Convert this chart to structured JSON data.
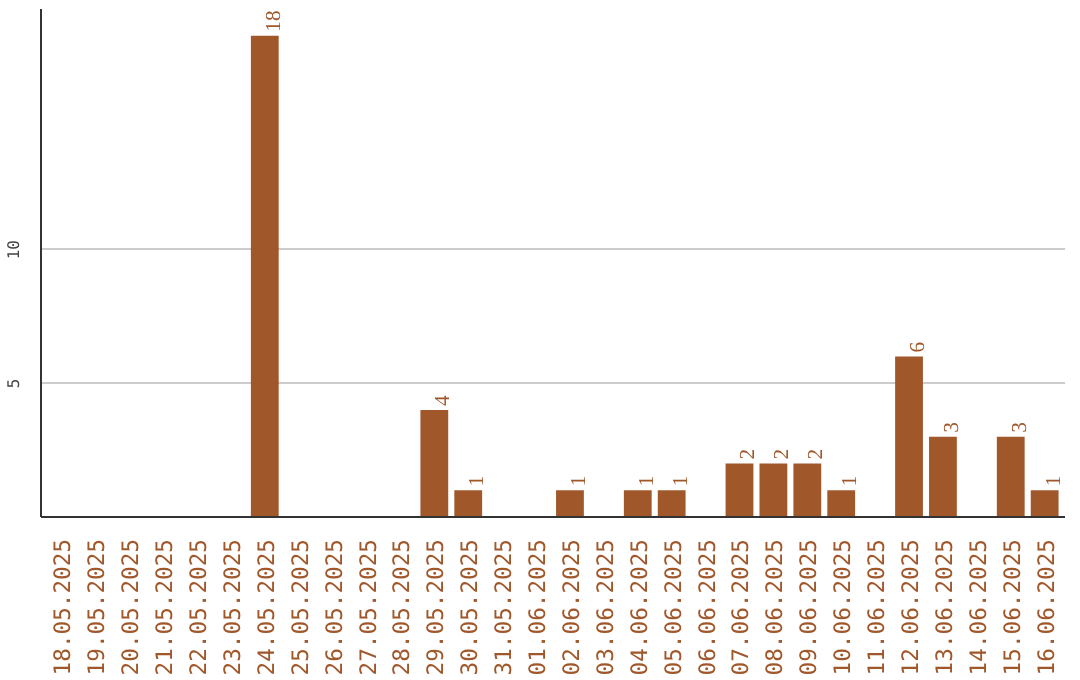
{
  "chart_data": {
    "type": "bar",
    "categories": [
      "18.05.2025",
      "19.05.2025",
      "20.05.2025",
      "21.05.2025",
      "22.05.2025",
      "23.05.2025",
      "24.05.2025",
      "25.05.2025",
      "26.05.2025",
      "27.05.2025",
      "28.05.2025",
      "29.05.2025",
      "30.05.2025",
      "31.05.2025",
      "01.06.2025",
      "02.06.2025",
      "03.06.2025",
      "04.06.2025",
      "05.06.2025",
      "06.06.2025",
      "07.06.2025",
      "08.06.2025",
      "09.06.2025",
      "10.06.2025",
      "11.06.2025",
      "12.06.2025",
      "13.06.2025",
      "14.06.2025",
      "15.06.2025",
      "16.06.2025"
    ],
    "values": [
      0,
      0,
      0,
      0,
      0,
      0,
      18,
      0,
      0,
      0,
      0,
      4,
      1,
      0,
      0,
      1,
      0,
      1,
      1,
      0,
      2,
      2,
      2,
      1,
      0,
      6,
      3,
      0,
      3,
      1
    ],
    "value_labels": [
      null,
      null,
      null,
      null,
      null,
      null,
      "18",
      null,
      null,
      null,
      null,
      "4",
      "1",
      null,
      null,
      "1",
      null,
      "1",
      "1",
      null,
      "2",
      "2",
      "2",
      "1",
      null,
      "6",
      "3",
      null,
      "3",
      "1"
    ],
    "color": "#a0572a",
    "ylim": [
      0,
      19
    ],
    "yticks": [
      5,
      10
    ],
    "grid": "y"
  }
}
